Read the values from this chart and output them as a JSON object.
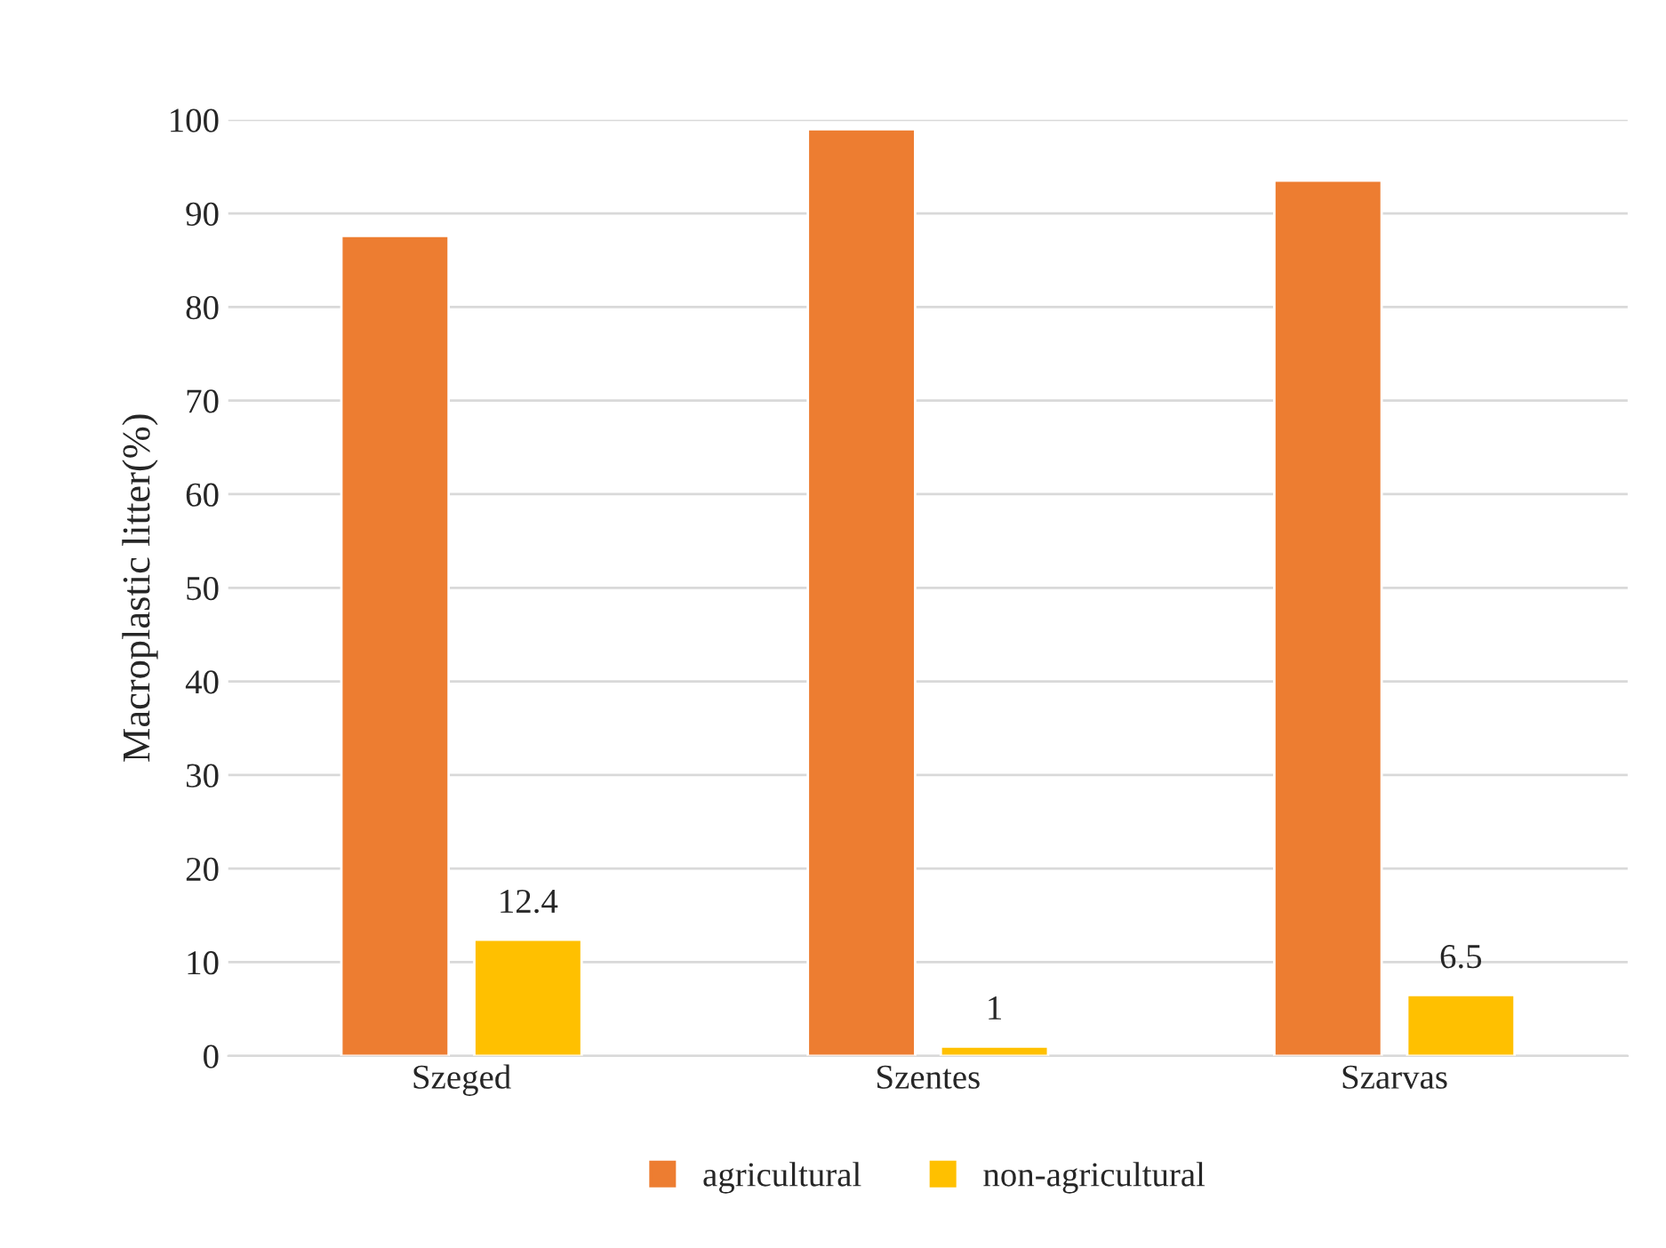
{
  "chart_data": {
    "type": "bar",
    "ylabel": "Macroplastic litter(%)",
    "categories": [
      "Szeged",
      "Szentes",
      "Szarvas"
    ],
    "series": [
      {
        "name": "agricultural",
        "color": "#ed7d31",
        "values": [
          87.6,
          99,
          93.5
        ]
      },
      {
        "name": "non-agricultural",
        "color": "#ffc000",
        "values": [
          12.4,
          1,
          6.5
        ],
        "value_labels": [
          "12.4",
          "1",
          "6.5"
        ]
      }
    ],
    "ylim": [
      0,
      100
    ],
    "yticks": [
      0,
      10,
      20,
      30,
      40,
      50,
      60,
      70,
      80,
      90,
      100
    ],
    "grid": "y",
    "legend": "bottom"
  }
}
